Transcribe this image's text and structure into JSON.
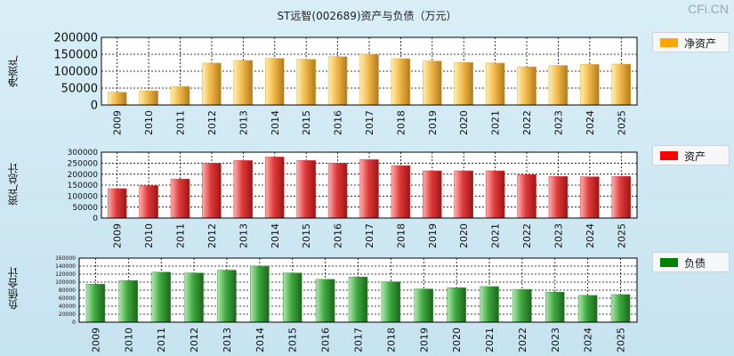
{
  "title": "ST远智(002689)资产与负债（万元）",
  "watermark": "CFi.CN",
  "chart_data": [
    {
      "type": "bar",
      "ylabel": "净资产",
      "legend": "净资产",
      "legend_color": "#ffa500",
      "bar_color": "#e8a734",
      "categories": [
        "2009",
        "2010",
        "2011",
        "2012",
        "2013",
        "2014",
        "2015",
        "2016",
        "2017",
        "2018",
        "2019",
        "2020",
        "2021",
        "2022",
        "2023",
        "2024",
        "2025"
      ],
      "values": [
        38000,
        42000,
        55000,
        124000,
        132000,
        138000,
        135000,
        143000,
        150000,
        137000,
        130000,
        126000,
        124000,
        113000,
        117000,
        120000,
        121000
      ],
      "ylim": [
        0,
        200000
      ],
      "yticks": [
        "200000",
        "150000",
        "100000",
        "50000",
        "0"
      ]
    },
    {
      "type": "bar",
      "ylabel": "资产总计",
      "legend": "资产",
      "legend_color": "#ff0000",
      "bar_color": "#d93a3a",
      "categories": [
        "2009",
        "2010",
        "2011",
        "2012",
        "2013",
        "2014",
        "2015",
        "2016",
        "2017",
        "2018",
        "2019",
        "2020",
        "2021",
        "2022",
        "2023",
        "2024",
        "2025"
      ],
      "values": [
        134000,
        148000,
        178000,
        250000,
        262000,
        278000,
        262000,
        250000,
        266000,
        239000,
        215000,
        215000,
        215000,
        198000,
        190000,
        188000,
        190000
      ],
      "ylim": [
        0,
        300000
      ],
      "yticks": [
        "300000",
        "250000",
        "200000",
        "150000",
        "100000",
        "50000",
        "0"
      ]
    },
    {
      "type": "bar",
      "ylabel": "负债合计",
      "legend": "负债",
      "legend_color": "#008000",
      "bar_color": "#3e9a3e",
      "categories": [
        "2009",
        "2010",
        "2011",
        "2012",
        "2013",
        "2014",
        "2015",
        "2016",
        "2017",
        "2018",
        "2019",
        "2020",
        "2021",
        "2022",
        "2023",
        "2024",
        "2025"
      ],
      "values": [
        95000,
        104000,
        125000,
        123000,
        130000,
        140000,
        123000,
        107000,
        113000,
        101000,
        83000,
        86000,
        89000,
        82000,
        75000,
        67000,
        69000
      ],
      "ylim": [
        0,
        160000
      ],
      "yticks": [
        "160000",
        "140000",
        "120000",
        "100000",
        "80000",
        "60000",
        "40000",
        "20000",
        "0"
      ]
    }
  ]
}
